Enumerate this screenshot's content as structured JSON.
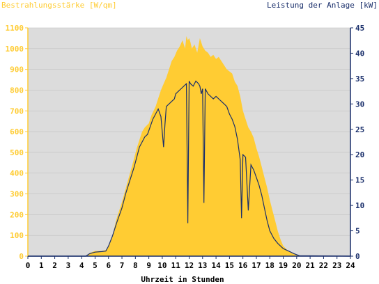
{
  "chart_data": {
    "type": "area",
    "left_axis_label": "Bestrahlungsstärke [W/qm]",
    "right_axis_label": "Leistung der Anlage [kW]",
    "xlabel": "Uhrzeit in Stunden",
    "xlim": [
      0,
      24
    ],
    "ylim_left": [
      0,
      1100
    ],
    "ylim_right": [
      0,
      45
    ],
    "x_ticks": [
      "0",
      "1",
      "2",
      "3",
      "4",
      "5",
      "6",
      "7",
      "8",
      "9",
      "10",
      "11",
      "12",
      "13",
      "14",
      "15",
      "16",
      "17",
      "18",
      "19",
      "20",
      "21",
      "22",
      "23",
      "24"
    ],
    "y_ticks_left": [
      "0",
      "100",
      "200",
      "300",
      "400",
      "500",
      "600",
      "700",
      "800",
      "900",
      "1000",
      "1100"
    ],
    "y_ticks_right": [
      "0",
      "5",
      "10",
      "15",
      "20",
      "25",
      "30",
      "35",
      "40",
      "45"
    ],
    "grid": true,
    "series": [
      {
        "name": "Bestrahlungsstärke [W/qm]",
        "axis": "left",
        "style": "area",
        "color": "#ffcc33",
        "x": [
          0,
          4.3,
          4.6,
          5.0,
          5.5,
          5.8,
          6.0,
          6.3,
          6.6,
          7.0,
          7.3,
          7.6,
          7.9,
          8.1,
          8.3,
          8.5,
          8.7,
          9.0,
          9.2,
          9.5,
          9.7,
          9.9,
          10.1,
          10.3,
          10.5,
          10.7,
          10.9,
          11.1,
          11.3,
          11.5,
          11.7,
          11.8,
          11.9,
          12.0,
          12.1,
          12.2,
          12.4,
          12.6,
          12.8,
          13.0,
          13.2,
          13.4,
          13.6,
          13.8,
          14.0,
          14.2,
          14.4,
          14.6,
          14.8,
          15.0,
          15.2,
          15.4,
          15.6,
          15.8,
          16.0,
          16.2,
          16.4,
          16.6,
          16.8,
          17.0,
          17.2,
          17.4,
          17.6,
          17.8,
          18.0,
          18.2,
          18.4,
          18.6,
          18.8,
          19.0,
          19.3,
          19.6,
          20.0,
          20.3,
          24
        ],
        "y": [
          0,
          0,
          15,
          25,
          25,
          30,
          50,
          100,
          180,
          260,
          330,
          400,
          470,
          520,
          560,
          600,
          620,
          640,
          680,
          720,
          760,
          800,
          830,
          860,
          900,
          940,
          960,
          990,
          1010,
          1040,
          1000,
          1060,
          1040,
          1050,
          1030,
          1000,
          1020,
          980,
          1050,
          1010,
          990,
          980,
          960,
          970,
          950,
          960,
          940,
          920,
          900,
          890,
          880,
          840,
          820,
          770,
          700,
          660,
          620,
          600,
          570,
          520,
          480,
          430,
          380,
          330,
          270,
          220,
          170,
          120,
          80,
          50,
          30,
          15,
          5,
          0,
          0
        ]
      },
      {
        "name": "Leistung der Anlage [kW]",
        "axis": "right",
        "style": "line",
        "color": "#1a2f6b",
        "x": [
          0,
          4.3,
          4.6,
          5.0,
          5.5,
          5.8,
          6.0,
          6.3,
          6.6,
          7.0,
          7.3,
          7.6,
          7.9,
          8.1,
          8.3,
          8.5,
          8.7,
          8.9,
          9.1,
          9.3,
          9.5,
          9.7,
          9.9,
          10.1,
          10.2,
          10.3,
          10.5,
          10.7,
          10.9,
          11.0,
          11.2,
          11.4,
          11.6,
          11.8,
          11.9,
          12.0,
          12.1,
          12.3,
          12.5,
          12.7,
          12.8,
          12.9,
          13.0,
          13.1,
          13.2,
          13.4,
          13.6,
          13.8,
          14.0,
          14.2,
          14.4,
          14.6,
          14.8,
          15.0,
          15.2,
          15.4,
          15.6,
          15.8,
          15.9,
          16.0,
          16.2,
          16.4,
          16.6,
          16.8,
          17.0,
          17.2,
          17.4,
          17.6,
          17.8,
          18.0,
          18.3,
          18.6,
          19.0,
          19.4,
          19.8,
          20.2,
          24
        ],
        "y": [
          0,
          0,
          0.5,
          0.8,
          0.9,
          1.0,
          2.0,
          4.0,
          6.5,
          9.5,
          12.5,
          15.0,
          17.5,
          19.5,
          21.5,
          22.5,
          23.5,
          24.0,
          25.5,
          27.0,
          28.0,
          29.0,
          27.5,
          21.5,
          26.0,
          29.5,
          30.0,
          30.5,
          31.0,
          32.0,
          32.5,
          33.0,
          33.5,
          34.0,
          6.5,
          34.5,
          34.0,
          33.5,
          34.5,
          34.0,
          33.5,
          32.0,
          33.0,
          10.5,
          33.0,
          32.0,
          31.5,
          31.0,
          31.5,
          31.0,
          30.5,
          30.0,
          29.5,
          28.0,
          27.0,
          25.5,
          23.0,
          19.0,
          7.5,
          20.0,
          19.5,
          9.0,
          18.0,
          17.0,
          15.5,
          14.0,
          12.0,
          9.5,
          7.0,
          5.0,
          3.5,
          2.5,
          1.5,
          1.0,
          0.5,
          0.1,
          0
        ]
      }
    ]
  },
  "colors": {
    "plot_background": "#dcdcdc",
    "gridline": "#bbbbbb",
    "left_axis": "#ffcc33",
    "right_axis": "#1a2f6b",
    "x_axis_text": "#000000"
  }
}
